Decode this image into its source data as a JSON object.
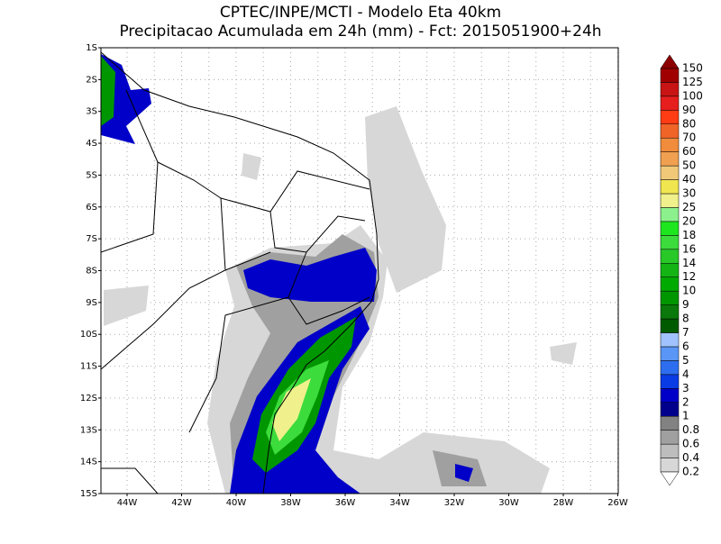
{
  "title": [
    "CPTEC/INPE/MCTI - Modelo Eta 40km",
    "Precipitacao Acumulada em 24h (mm) - Fct: 2015051900+24h"
  ],
  "lat_labels": [
    "1S",
    "2S",
    "3S",
    "4S",
    "5S",
    "6S",
    "7S",
    "8S",
    "9S",
    "10S",
    "11S",
    "12S",
    "13S",
    "14S",
    "15S"
  ],
  "lon_labels": [
    "44W",
    "42W",
    "40W",
    "38W",
    "36W",
    "34W",
    "32W",
    "30W",
    "28W",
    "26W"
  ],
  "colorbar": {
    "labels": [
      "0.2",
      "0.4",
      "0.6",
      "0.8",
      "1",
      "2",
      "3",
      "4",
      "5",
      "6",
      "7",
      "8",
      "9",
      "10",
      "12",
      "14",
      "16",
      "18",
      "20",
      "25",
      "30",
      "40",
      "50",
      "60",
      "70",
      "80",
      "90",
      "100",
      "125",
      "150"
    ],
    "colors": [
      "#d7d7d7",
      "#bdbdbd",
      "#a0a0a0",
      "#828282",
      "#00008c",
      "#0000c8",
      "#0a3ce6",
      "#2d6ef0",
      "#5a96f5",
      "#a0c3ff",
      "#005a00",
      "#0a780a",
      "#009600",
      "#00aa00",
      "#14b414",
      "#28c828",
      "#3cdc3c",
      "#1ee61e",
      "#8cf08c",
      "#f0f08c",
      "#f0e650",
      "#f0c878",
      "#f0a050",
      "#f08c3c",
      "#f06428",
      "#ff3c14",
      "#e61e1e",
      "#c81414",
      "#a00000"
    ],
    "under_color": "#ffffff",
    "over_color": "#8b0000"
  }
}
